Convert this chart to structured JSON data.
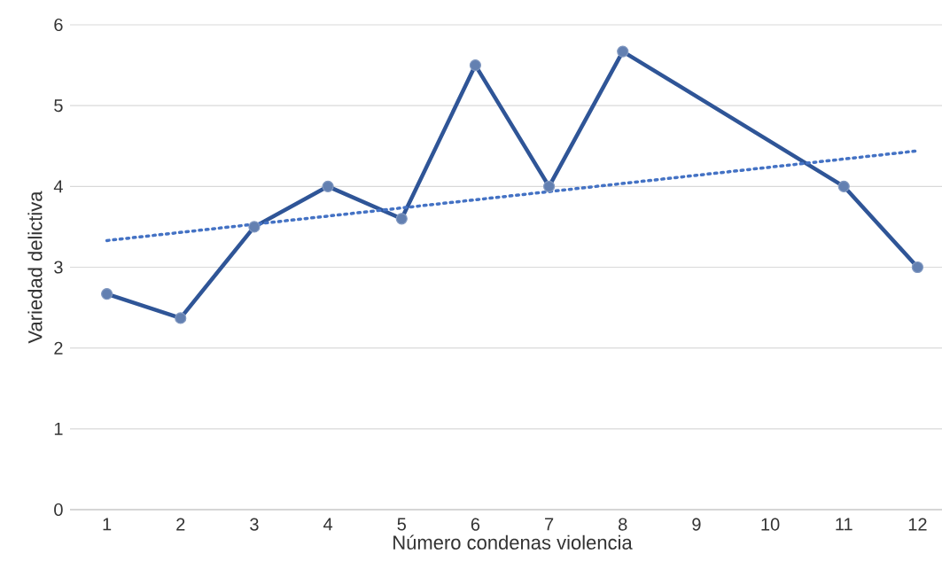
{
  "chart_data": {
    "type": "line",
    "xlabel": "Número condenas violencia",
    "ylabel": "Variedad delictiva",
    "xlim": [
      0.5,
      12.5
    ],
    "xticks": [
      1,
      2,
      3,
      4,
      5,
      6,
      7,
      8,
      9,
      10,
      11,
      12
    ],
    "ylim": [
      0,
      6
    ],
    "yticks": [
      0,
      1,
      2,
      3,
      4,
      5,
      6
    ],
    "grid": "y",
    "series": [
      {
        "x": [
          1,
          2,
          3,
          4,
          5,
          6,
          7,
          8,
          11,
          12
        ],
        "values": [
          2.67,
          2.37,
          3.5,
          4.0,
          3.6,
          5.5,
          4.0,
          5.67,
          4.0,
          3.0
        ],
        "color": "#2f5597",
        "marker": "circle",
        "line_style": "solid"
      },
      {
        "type": "line",
        "x": [
          1,
          12
        ],
        "values": [
          3.33,
          4.44
        ],
        "color": "#4472c4",
        "marker": "none",
        "line_style": "dotted"
      }
    ]
  }
}
